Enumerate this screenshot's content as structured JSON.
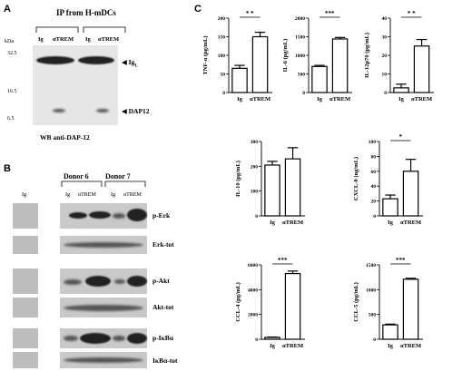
{
  "panel_a": {
    "letter": "A",
    "title": "IP from H-mDCs",
    "kda_label": "kDa",
    "markers": [
      "32.5",
      "16.5",
      "6.5"
    ],
    "lane_groups": [
      [
        "Ig",
        "αTREM"
      ],
      [
        "Ig",
        "αTREM"
      ]
    ],
    "band_labels": [
      "◀ Ig",
      "◀ DAP12"
    ],
    "igl_sub": "L",
    "wb_label": "WB anti-DAP-12"
  },
  "panel_b": {
    "letter": "B",
    "donors": [
      "Donor 6",
      "Donor 7"
    ],
    "lane_first": "Ig",
    "lanes": [
      "Ig",
      "αTREM",
      "Ig",
      "αTREM"
    ],
    "rows": [
      "p-Erk",
      "Erk-tot",
      "p-Akt",
      "Akt-tot",
      "p-IκBα",
      "IκBα-tot"
    ]
  },
  "panel_c": {
    "letter": "C"
  },
  "chart_data": [
    {
      "type": "bar",
      "categories": [
        "Ig",
        "αTREM"
      ],
      "values": [
        65,
        150
      ],
      "errors": [
        8,
        12
      ],
      "ylabel": "TNF-α (pg/mL)",
      "ylim": [
        0,
        200
      ],
      "yticks": [
        "0",
        "50",
        "100",
        "150",
        "200"
      ],
      "significance": "* *"
    },
    {
      "type": "bar",
      "categories": [
        "Ig",
        "αTREM"
      ],
      "values": [
        700,
        1440
      ],
      "errors": [
        30,
        40
      ],
      "ylabel": "IL-6 (pg/mL)",
      "ylim": [
        0,
        2000
      ],
      "yticks": [
        "0",
        "500",
        "1000",
        "1500",
        "2000"
      ],
      "significance": "***"
    },
    {
      "type": "bar",
      "categories": [
        "Ig",
        "αTREM"
      ],
      "values": [
        2.5,
        25
      ],
      "errors": [
        2,
        3.5
      ],
      "ylabel": "IL-12p70 (pg/mL)",
      "ylim": [
        0,
        40
      ],
      "yticks": [
        "0",
        "10",
        "20",
        "30",
        "40"
      ],
      "significance": "* *"
    },
    {
      "type": "bar",
      "categories": [
        "Ig",
        "αTREM"
      ],
      "values": [
        205,
        230
      ],
      "errors": [
        15,
        45
      ],
      "ylabel": "IL-10 (pg/mL)",
      "ylim": [
        0,
        300
      ],
      "yticks": [
        "0",
        "100",
        "200",
        "300"
      ],
      "significance": ""
    },
    {
      "type": "bar",
      "categories": [
        "Ig",
        "αTREM"
      ],
      "values": [
        23,
        60
      ],
      "errors": [
        5,
        16
      ],
      "ylabel": "CXCL-8 (ng/mL)",
      "ylim": [
        0,
        100
      ],
      "yticks": [
        "0",
        "20",
        "40",
        "60",
        "80",
        "100"
      ],
      "significance": "*"
    },
    {
      "type": "bar",
      "categories": [
        "Ig",
        "αTREM"
      ],
      "values": [
        150,
        5300
      ],
      "errors": [
        30,
        200
      ],
      "ylabel": "CCL-4 (pg/mL)",
      "ylim": [
        0,
        6000
      ],
      "yticks": [
        "0",
        "2000",
        "4000",
        "6000"
      ],
      "significance": "***"
    },
    {
      "type": "bar",
      "categories": [
        "Ig",
        "αTREM"
      ],
      "values": [
        290,
        1210
      ],
      "errors": [
        15,
        20
      ],
      "ylabel": "CCL-5 (pg/mL)",
      "ylim": [
        0,
        1500
      ],
      "yticks": [
        "0",
        "500",
        "1000",
        "1500"
      ],
      "significance": "***"
    }
  ]
}
